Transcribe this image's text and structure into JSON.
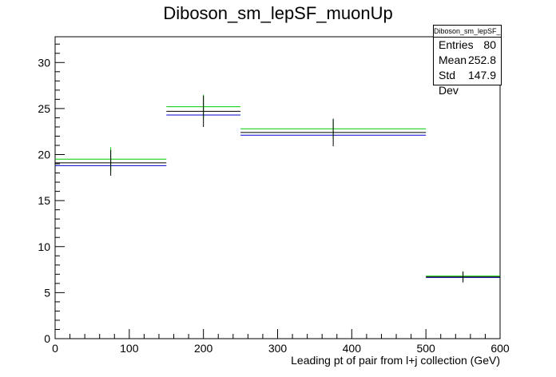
{
  "chart_data": {
    "type": "histogram",
    "title": "Diboson_sm_lepSF_muonUp",
    "xlabel": "Leading pt of pair from l+j collection (GeV)",
    "ylabel": "",
    "xlim": [
      0,
      600
    ],
    "ylim": [
      0,
      32.8
    ],
    "x_ticks": [
      0,
      100,
      200,
      300,
      400,
      500,
      600
    ],
    "y_ticks": [
      0,
      5,
      10,
      15,
      20,
      25,
      30
    ],
    "grid": false,
    "bins": [
      {
        "low": 0,
        "high": 150,
        "center": 75
      },
      {
        "low": 150,
        "high": 250,
        "center": 200
      },
      {
        "low": 250,
        "high": 500,
        "center": 375
      },
      {
        "low": 500,
        "high": 600,
        "center": 550
      }
    ],
    "series": [
      {
        "color": "#000000",
        "values": [
          19.1,
          24.7,
          22.4,
          6.7
        ],
        "errors": [
          1.4,
          1.7,
          1.5,
          0.6
        ]
      },
      {
        "color": "#00cc00",
        "values": [
          19.5,
          25.2,
          22.8,
          6.8
        ],
        "errors": [
          1.3,
          1.3,
          1.0,
          0.5
        ]
      },
      {
        "color": "#0000cc",
        "values": [
          18.8,
          24.3,
          22.1,
          6.65
        ],
        "errors": [
          0,
          0,
          0,
          0
        ]
      }
    ],
    "stats_box": {
      "name": "Diboson_sm_lepSF_muonUp",
      "entries_label": "Entries",
      "entries": "80",
      "mean_label": "Mean",
      "mean": "252.8",
      "stddev_label": "Std Dev",
      "stddev": "147.9"
    }
  }
}
